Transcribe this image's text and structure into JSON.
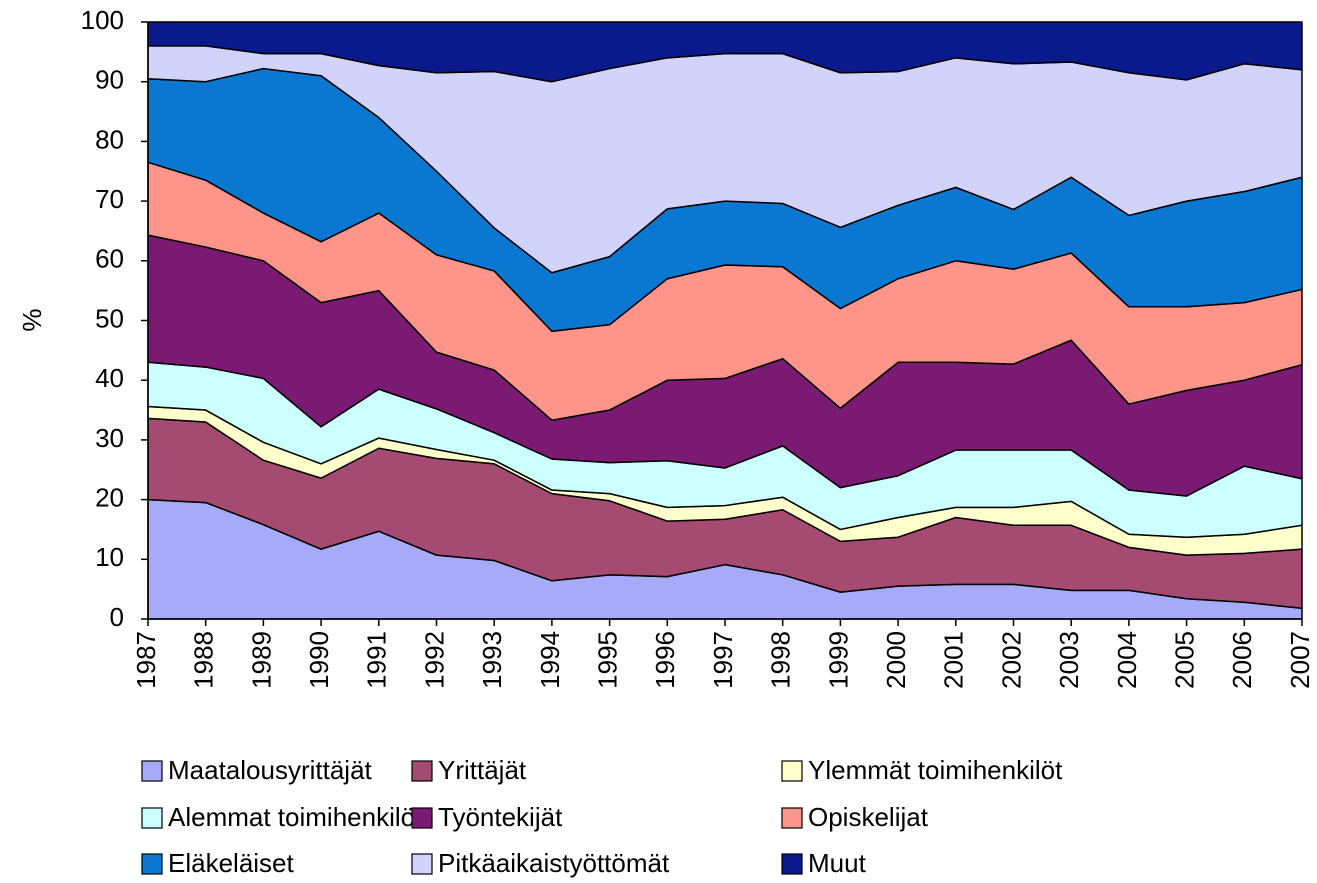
{
  "chart_data": {
    "type": "stacked-area",
    "y_label": "%",
    "categories": [
      "1987",
      "1988",
      "1989",
      "1990",
      "1991",
      "1992",
      "1993",
      "1994",
      "1995",
      "1996",
      "1997",
      "1998",
      "1999",
      "2000",
      "2001",
      "2002",
      "2003",
      "2004",
      "2005",
      "2006",
      "2007"
    ],
    "ylim": [
      0,
      100
    ],
    "yticks": [
      0,
      10,
      20,
      30,
      40,
      50,
      60,
      70,
      80,
      90,
      100
    ],
    "grid": false,
    "legend": "bottom",
    "series": [
      {
        "name": "Maatalousyrittäjät",
        "color": "#a6aaf8",
        "values": [
          20,
          19.5,
          15.8,
          11.7,
          14.7,
          10.7,
          9.8,
          6.4,
          7.4,
          7.1,
          9.1,
          7.4,
          4.5,
          5.5,
          5.8,
          5.8,
          4.8,
          4.8,
          3.4,
          2.8,
          1.8
        ]
      },
      {
        "name": "Yrittäjät",
        "color": "#a54a70",
        "values": [
          13.6,
          13.5,
          10.8,
          11.9,
          13.9,
          16.2,
          16.2,
          14.6,
          12.4,
          9.3,
          7.6,
          10.9,
          8.5,
          8.2,
          11.2,
          9.9,
          10.9,
          7.2,
          7.3,
          8.2,
          9.9
        ]
      },
      {
        "name": "Ylemmät toimihenkilöt",
        "color": "#ffffcc",
        "values": [
          2.0,
          2.0,
          3.0,
          2.4,
          1.7,
          1.5,
          0.6,
          0.6,
          1.2,
          2.3,
          2.3,
          2.1,
          2.0,
          3.3,
          1.7,
          3.0,
          4.0,
          2.2,
          3.0,
          3.2,
          4.0
        ]
      },
      {
        "name": "Alemmat toimihenkilöt",
        "color": "#ccffff",
        "values": [
          7.4,
          7.2,
          10.7,
          6.2,
          8.2,
          6.8,
          4.6,
          5.2,
          5.2,
          7.8,
          6.3,
          8.6,
          7.0,
          7.0,
          9.6,
          9.6,
          8.6,
          7.4,
          6.9,
          11.4,
          7.8
        ]
      },
      {
        "name": "Työntekijät",
        "color": "#7b1a73",
        "values": [
          21.3,
          20.1,
          19.7,
          20.8,
          16.5,
          9.5,
          10.5,
          6.5,
          8.8,
          13.5,
          15.0,
          14.6,
          13.3,
          19.0,
          14.7,
          14.4,
          18.4,
          14.4,
          17.7,
          14.4,
          19.1
        ]
      },
      {
        "name": "Opiskelijat",
        "color": "#ff958a",
        "values": [
          12.2,
          11.2,
          8.0,
          10.2,
          13.0,
          16.3,
          16.6,
          14.9,
          14.3,
          17.0,
          19.0,
          15.4,
          16.7,
          14.0,
          17.0,
          15.9,
          14.6,
          16.3,
          14.0,
          13.0,
          12.6
        ]
      },
      {
        "name": "Eläkeläiset",
        "color": "#0a78d0",
        "values": [
          14.0,
          16.5,
          24.2,
          27.8,
          16.0,
          14.0,
          7.2,
          9.8,
          11.4,
          11.7,
          10.7,
          10.6,
          13.6,
          12.3,
          12.3,
          10.0,
          12.7,
          15.3,
          17.7,
          18.6,
          18.8
        ]
      },
      {
        "name": "Pitkäaikaistyöttömät",
        "color": "#d2d3fb",
        "values": [
          5.5,
          6.0,
          2.5,
          3.7,
          8.7,
          16.5,
          26.2,
          32.0,
          31.5,
          25.3,
          24.7,
          25.1,
          25.9,
          22.4,
          21.7,
          24.4,
          19.3,
          23.9,
          20.3,
          21.4,
          18.0
        ]
      },
      {
        "name": "Muut",
        "color": "#0a1a8c",
        "values": [
          4.0,
          4.0,
          5.3,
          5.3,
          7.3,
          8.5,
          8.3,
          10.0,
          7.8,
          6.0,
          5.3,
          5.3,
          8.5,
          8.3,
          6.0,
          7.0,
          6.7,
          8.5,
          9.7,
          7.0,
          8.0
        ]
      }
    ]
  }
}
